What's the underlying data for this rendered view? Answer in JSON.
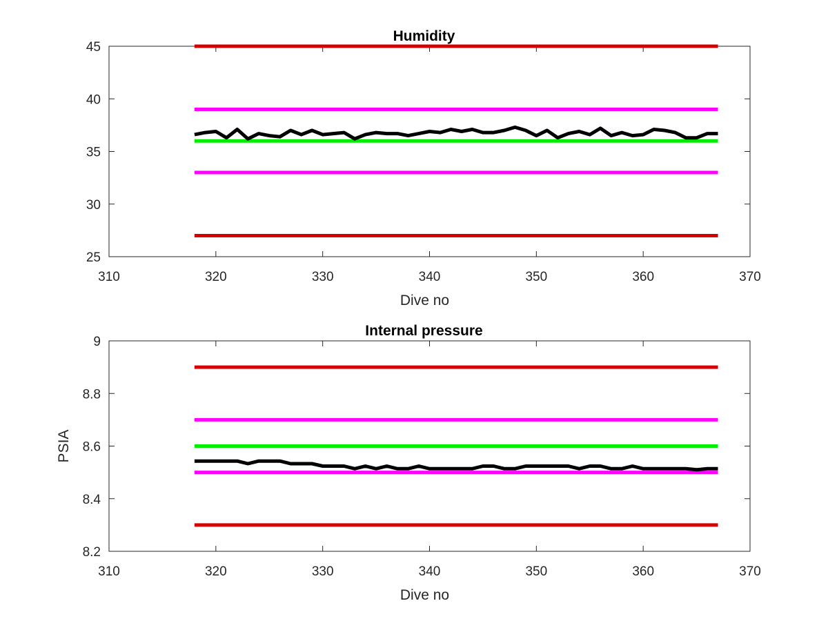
{
  "chart_data": [
    {
      "type": "line",
      "title": "Humidity",
      "xlabel": "Dive no",
      "ylabel": "",
      "xlim": [
        310,
        370
      ],
      "ylim": [
        25,
        45
      ],
      "xticks": [
        310,
        320,
        330,
        340,
        350,
        360,
        370
      ],
      "yticks": [
        25,
        30,
        35,
        40,
        45
      ],
      "grid": false,
      "legend": "none",
      "limit_lines": [
        {
          "color": "#d40000",
          "y": 45,
          "x_range": [
            318,
            367
          ]
        },
        {
          "color": "#ff00ff",
          "y": 39,
          "x_range": [
            318,
            367
          ]
        },
        {
          "color": "#00ee00",
          "y": 36,
          "x_range": [
            318,
            367
          ]
        },
        {
          "color": "#ff00ff",
          "y": 33,
          "x_range": [
            318,
            367
          ]
        },
        {
          "color": "#d40000",
          "y": 27,
          "x_range": [
            318,
            367
          ]
        }
      ],
      "series": [
        {
          "color": "#000000",
          "x": [
            318,
            319,
            320,
            321,
            322,
            323,
            324,
            325,
            326,
            327,
            328,
            329,
            330,
            331,
            332,
            333,
            334,
            335,
            336,
            337,
            338,
            339,
            340,
            341,
            342,
            343,
            344,
            345,
            346,
            347,
            348,
            349,
            350,
            351,
            352,
            353,
            354,
            355,
            356,
            357,
            358,
            359,
            360,
            361,
            362,
            363,
            364,
            365,
            366,
            367
          ],
          "values": [
            36.6,
            36.8,
            36.9,
            36.3,
            37.1,
            36.2,
            36.7,
            36.5,
            36.4,
            37.0,
            36.6,
            37.0,
            36.6,
            36.7,
            36.8,
            36.2,
            36.6,
            36.8,
            36.7,
            36.7,
            36.5,
            36.7,
            36.9,
            36.8,
            37.1,
            36.9,
            37.1,
            36.8,
            36.8,
            37.0,
            37.3,
            37.0,
            36.5,
            37.0,
            36.3,
            36.7,
            36.9,
            36.6,
            37.2,
            36.5,
            36.8,
            36.5,
            36.6,
            37.1,
            37.0,
            36.8,
            36.3,
            36.3,
            36.7,
            36.7
          ]
        }
      ]
    },
    {
      "type": "line",
      "title": "Internal pressure",
      "xlabel": "Dive no",
      "ylabel": "PSIA",
      "xlim": [
        310,
        370
      ],
      "ylim": [
        8.2,
        9
      ],
      "xticks": [
        310,
        320,
        330,
        340,
        350,
        360,
        370
      ],
      "yticks": [
        8.2,
        8.4,
        8.6,
        8.8,
        9
      ],
      "grid": false,
      "legend": "none",
      "limit_lines": [
        {
          "color": "#d40000",
          "y": 8.9,
          "x_range": [
            318,
            367
          ]
        },
        {
          "color": "#ff00ff",
          "y": 8.7,
          "x_range": [
            318,
            367
          ]
        },
        {
          "color": "#00ee00",
          "y": 8.6,
          "x_range": [
            318,
            367
          ]
        },
        {
          "color": "#ff00ff",
          "y": 8.5,
          "x_range": [
            318,
            367
          ]
        },
        {
          "color": "#d40000",
          "y": 8.3,
          "x_range": [
            318,
            367
          ]
        }
      ],
      "series": [
        {
          "color": "#000000",
          "x": [
            318,
            319,
            320,
            321,
            322,
            323,
            324,
            325,
            326,
            327,
            328,
            329,
            330,
            331,
            332,
            333,
            334,
            335,
            336,
            337,
            338,
            339,
            340,
            341,
            342,
            343,
            344,
            345,
            346,
            347,
            348,
            349,
            350,
            351,
            352,
            353,
            354,
            355,
            356,
            357,
            358,
            359,
            360,
            361,
            362,
            363,
            364,
            365,
            366,
            367
          ],
          "values": [
            8.543,
            8.543,
            8.543,
            8.543,
            8.543,
            8.533,
            8.543,
            8.543,
            8.543,
            8.533,
            8.533,
            8.533,
            8.524,
            8.524,
            8.524,
            8.514,
            8.524,
            8.514,
            8.524,
            8.514,
            8.514,
            8.524,
            8.514,
            8.514,
            8.514,
            8.514,
            8.514,
            8.524,
            8.524,
            8.514,
            8.514,
            8.524,
            8.524,
            8.524,
            8.524,
            8.524,
            8.514,
            8.524,
            8.524,
            8.514,
            8.514,
            8.524,
            8.514,
            8.514,
            8.514,
            8.514,
            8.514,
            8.51,
            8.514,
            8.514
          ]
        }
      ]
    }
  ]
}
